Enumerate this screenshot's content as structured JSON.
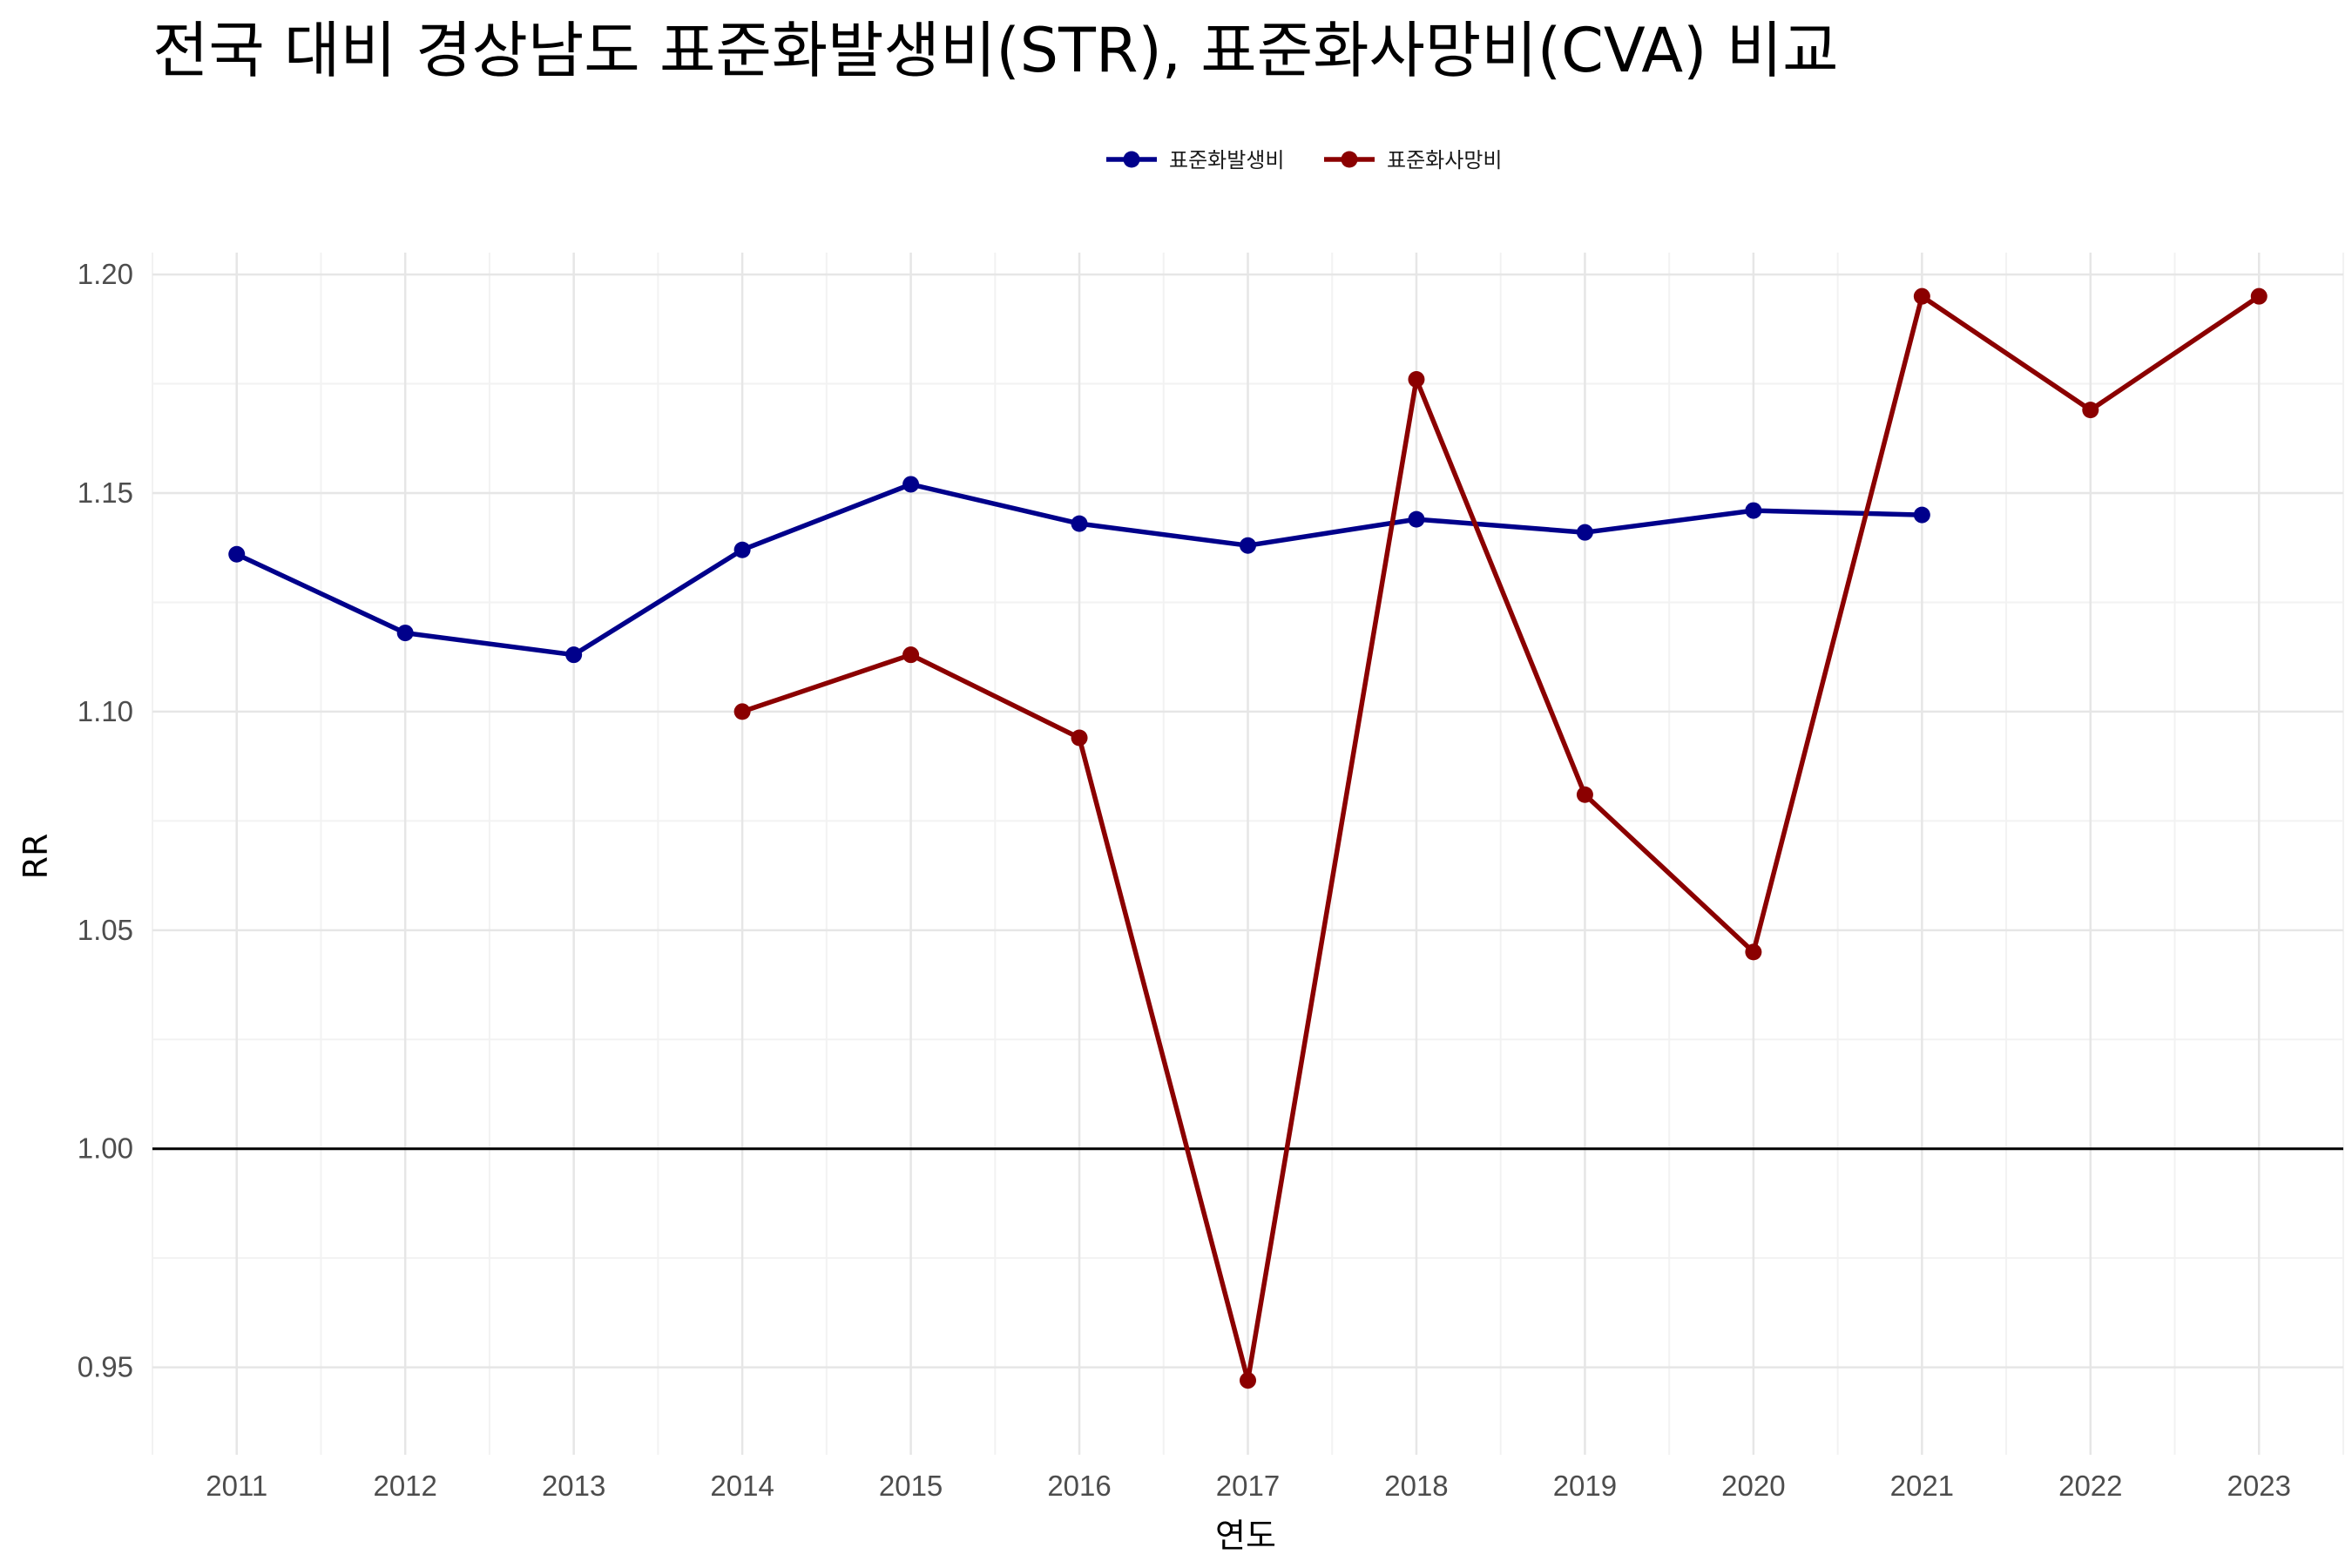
{
  "chart_data": {
    "type": "line",
    "title": "전국 대비 경상남도 표준화발생비(STR), 표준화사망비(CVA) 비교",
    "xlabel": "연도",
    "ylabel": "RR",
    "x": [
      2011,
      2012,
      2013,
      2014,
      2015,
      2016,
      2017,
      2018,
      2019,
      2020,
      2021,
      2022,
      2023
    ],
    "xlim": [
      2010.5,
      2023.5
    ],
    "ylim": [
      0.93,
      1.205
    ],
    "yticks": [
      0.95,
      1.0,
      1.05,
      1.1,
      1.15,
      1.2
    ],
    "ytick_labels": [
      "0.95",
      "1.00",
      "1.05",
      "1.10",
      "1.15",
      "1.20"
    ],
    "reference_line": 1.0,
    "grid": true,
    "legend_position": "top-center",
    "series": [
      {
        "name": "표준화발생비",
        "color": "#00008b",
        "values": [
          1.136,
          1.118,
          1.113,
          1.137,
          1.152,
          1.143,
          1.138,
          1.144,
          1.141,
          1.146,
          1.145,
          null,
          null
        ]
      },
      {
        "name": "표준화사망비",
        "color": "#8b0000",
        "values": [
          null,
          null,
          null,
          1.1,
          1.113,
          1.094,
          0.947,
          1.176,
          1.081,
          1.045,
          1.195,
          1.169,
          1.195
        ]
      }
    ]
  }
}
